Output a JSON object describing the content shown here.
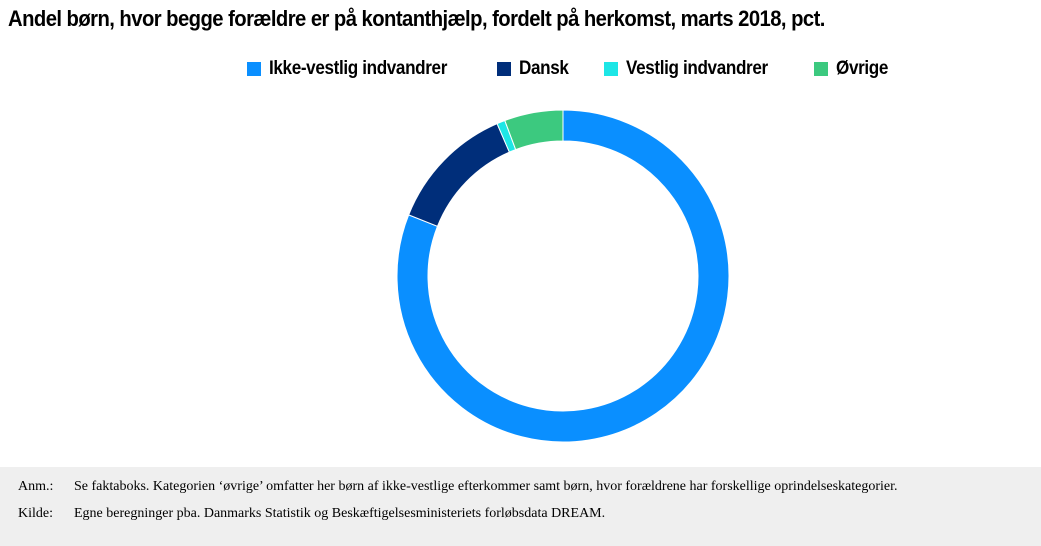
{
  "title": "Andel børn, hvor begge forældre er på kontanthjælp, fordelt på herkomst, marts 2018, pct.",
  "chart_data": {
    "type": "pie",
    "subtype": "donut",
    "title": "Andel børn, hvor begge forældre er på kontanthjælp, fordelt på herkomst, marts 2018, pct.",
    "legend_position": "top",
    "categories": [
      "Ikke-vestlig indvandrer",
      "Dansk",
      "Vestlig indvandrer",
      "Øvrige"
    ],
    "values": [
      81,
      12.5,
      0.8,
      5.7
    ],
    "colors": [
      "#0a8fff",
      "#002e7a",
      "#1de6e6",
      "#3cc97f"
    ]
  },
  "notes": {
    "anm_label": "Anm.:",
    "anm_text": "Se faktaboks. Kategorien ‘øvrige’ omfatter her børn af ikke-vestlige efterkommer samt børn, hvor forældrene har forskellige oprindelseskategorier.",
    "kilde_label": "Kilde:",
    "kilde_text": "Egne beregninger pba. Danmarks Statistik og Beskæftigelsesministeriets forløbsdata DREAM."
  }
}
